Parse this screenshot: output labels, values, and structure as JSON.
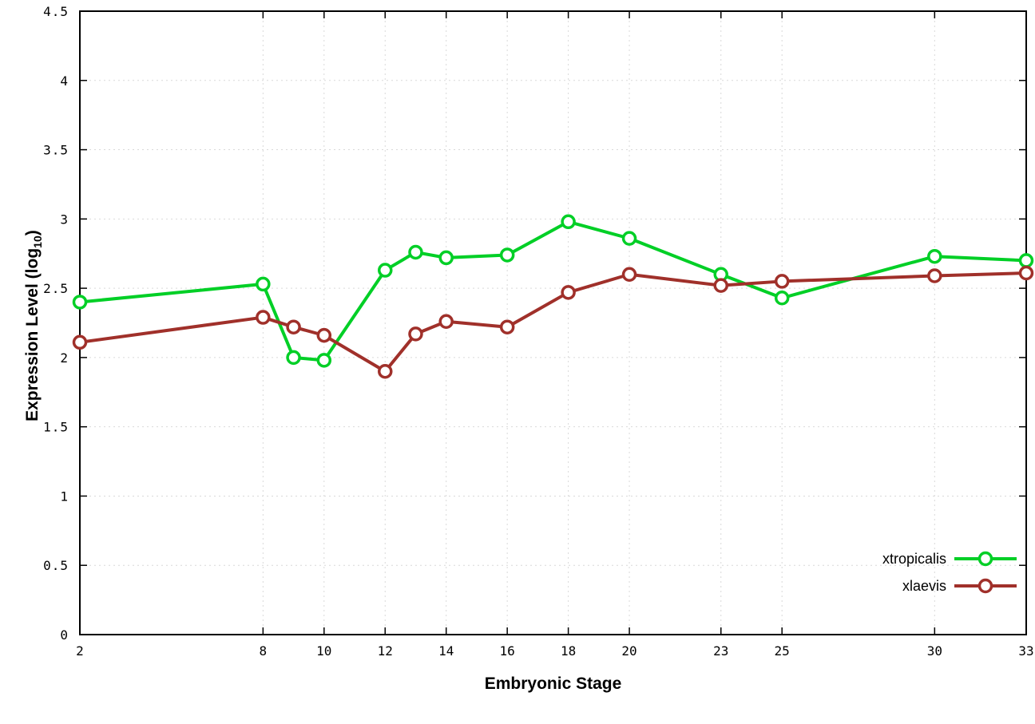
{
  "page": {
    "background": "#ffffff"
  },
  "axis": {
    "x_title": "Embryonic Stage",
    "y_title_pre": "Expression Level (log",
    "y_title_sub": "10",
    "y_title_post": ")"
  },
  "chart_data": {
    "type": "line",
    "title": "",
    "xlabel": "Embryonic Stage",
    "ylabel": "Expression Level (log10)",
    "xlim": [
      2,
      33
    ],
    "ylim": [
      0,
      4.5
    ],
    "x_ticks": [
      2,
      8,
      10,
      12,
      14,
      16,
      18,
      20,
      23,
      25,
      30,
      33
    ],
    "y_ticks": [
      0,
      0.5,
      1,
      1.5,
      2,
      2.5,
      3,
      3.5,
      4,
      4.5
    ],
    "grid": true,
    "legend_position": "bottom-right",
    "x": [
      2,
      8,
      9,
      10,
      12,
      13,
      14,
      16,
      18,
      20,
      23,
      25,
      30,
      33
    ],
    "series": [
      {
        "name": "xtropicalis",
        "color": "#00cf26",
        "values": [
          2.4,
          2.53,
          2.0,
          1.98,
          2.63,
          2.76,
          2.72,
          2.74,
          2.98,
          2.86,
          2.6,
          2.43,
          2.73,
          2.7
        ]
      },
      {
        "name": "xlaevis",
        "color": "#a0302a",
        "values": [
          2.11,
          2.29,
          2.22,
          2.16,
          1.9,
          2.17,
          2.26,
          2.22,
          2.47,
          2.6,
          2.52,
          2.55,
          2.59,
          2.61
        ]
      }
    ],
    "style": {
      "grid_color": "#d9d9d9",
      "border_color": "#000000",
      "tick_font_size": 16,
      "legend_font_size": 18,
      "line_width": 4,
      "marker_radius": 7.5,
      "marker_stroke": 3.5
    }
  }
}
